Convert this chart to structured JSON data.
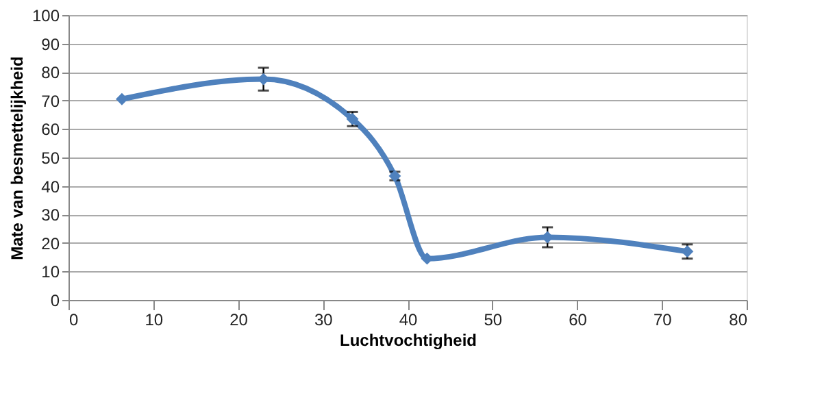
{
  "chart_data": {
    "type": "line",
    "xlabel": "Luchtvochtigheid",
    "ylabel": "Mate van besmettelijkheid",
    "x": [
      6.3,
      23,
      33.5,
      38.5,
      42.3,
      56.5,
      73
    ],
    "series": [
      {
        "color": "#4f81bd",
        "values": [
          70.5,
          77.5,
          63.5,
          43.5,
          14.5,
          22,
          17
        ],
        "errors": [
          null,
          4,
          2.5,
          1.5,
          null,
          3.5,
          2.5
        ]
      }
    ],
    "xlim": [
      0,
      80
    ],
    "xticks": [
      0,
      10,
      20,
      30,
      40,
      50,
      60,
      70,
      80
    ],
    "ylim": [
      0,
      100
    ],
    "yticks": [
      0,
      10,
      20,
      30,
      40,
      50,
      60,
      70,
      80,
      90,
      100
    ],
    "grid": "y",
    "marker": "diamond",
    "line_style": "solid"
  }
}
